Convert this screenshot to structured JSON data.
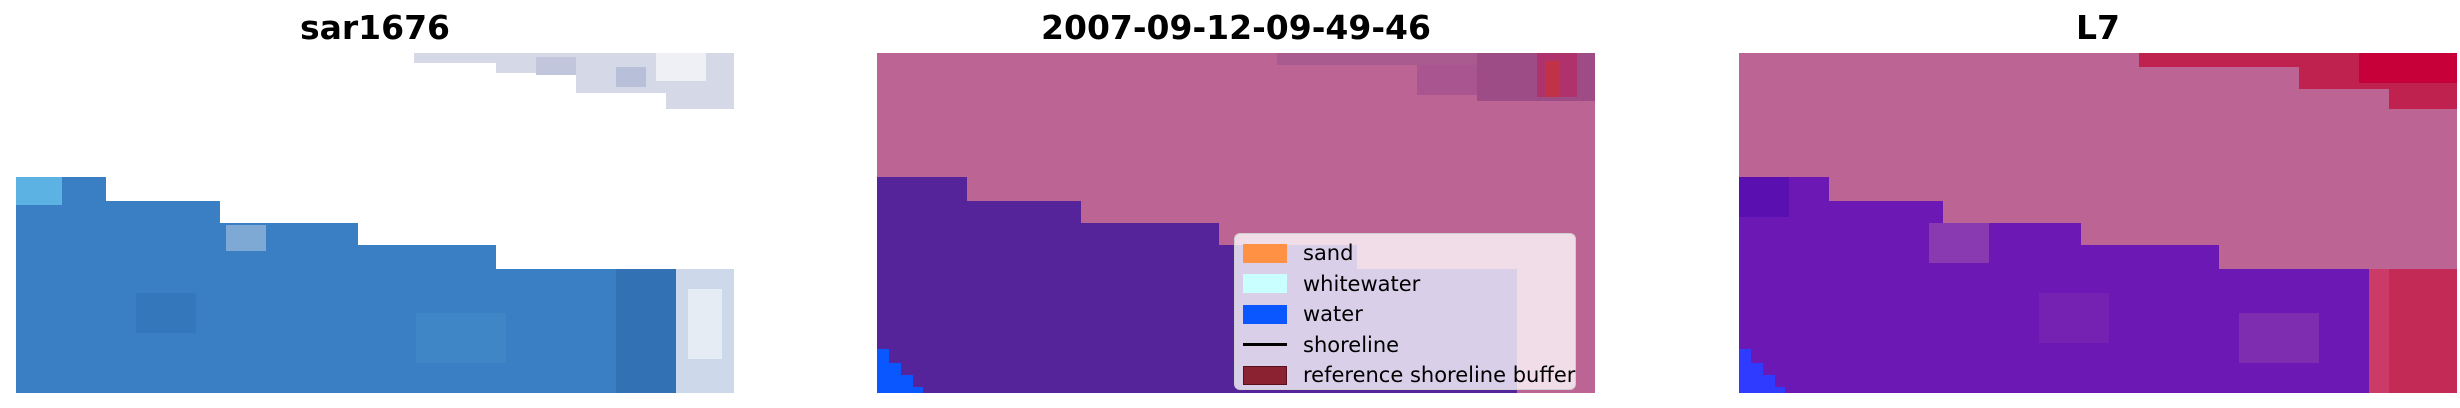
{
  "panels": [
    {
      "title": "sar1676"
    },
    {
      "title": "2007-09-12-09-49-46"
    },
    {
      "title": "L7"
    }
  ],
  "legend": {
    "items": [
      {
        "label": "sand",
        "color": "#ff9145",
        "kind": "patch"
      },
      {
        "label": "whitewater",
        "color": "#c9ffff",
        "kind": "patch"
      },
      {
        "label": "water",
        "color": "#0b57ff",
        "kind": "patch"
      },
      {
        "label": "shoreline",
        "color": "#000000",
        "kind": "line"
      },
      {
        "label": "reference shoreline buffer",
        "color": "#8b2232",
        "kind": "patch"
      }
    ]
  },
  "colors": {
    "rgb_water": "#3a7fc4",
    "rgb_surf": "#cdd9ea",
    "class_land": "#bc6494",
    "class_water": "#55249a",
    "class_water_bright": "#0b57ff",
    "mndwi_land": "#bc6494",
    "mndwi_water": "#6c18b4",
    "mndwi_high": "#c8003a"
  }
}
